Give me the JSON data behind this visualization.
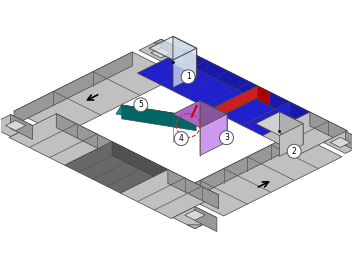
{
  "bg": "#ffffff",
  "tc": "#c0c0c0",
  "td": "#989898",
  "tdd": "#686868",
  "tdk": "#505050",
  "bc": "#2020cc",
  "bcd": "#1818aa",
  "rc": "#cc2020",
  "rcd": "#aa0000",
  "teal": "#009999",
  "teal_d": "#006666",
  "purp": "#aa66cc",
  "purp_d": "#885599",
  "purp_s": "#cc99ee",
  "blk": "#1a1a1a",
  "gray_dark": "#404040",
  "corner_inner": "#d8d8d8",
  "seg_lines": "#555555"
}
